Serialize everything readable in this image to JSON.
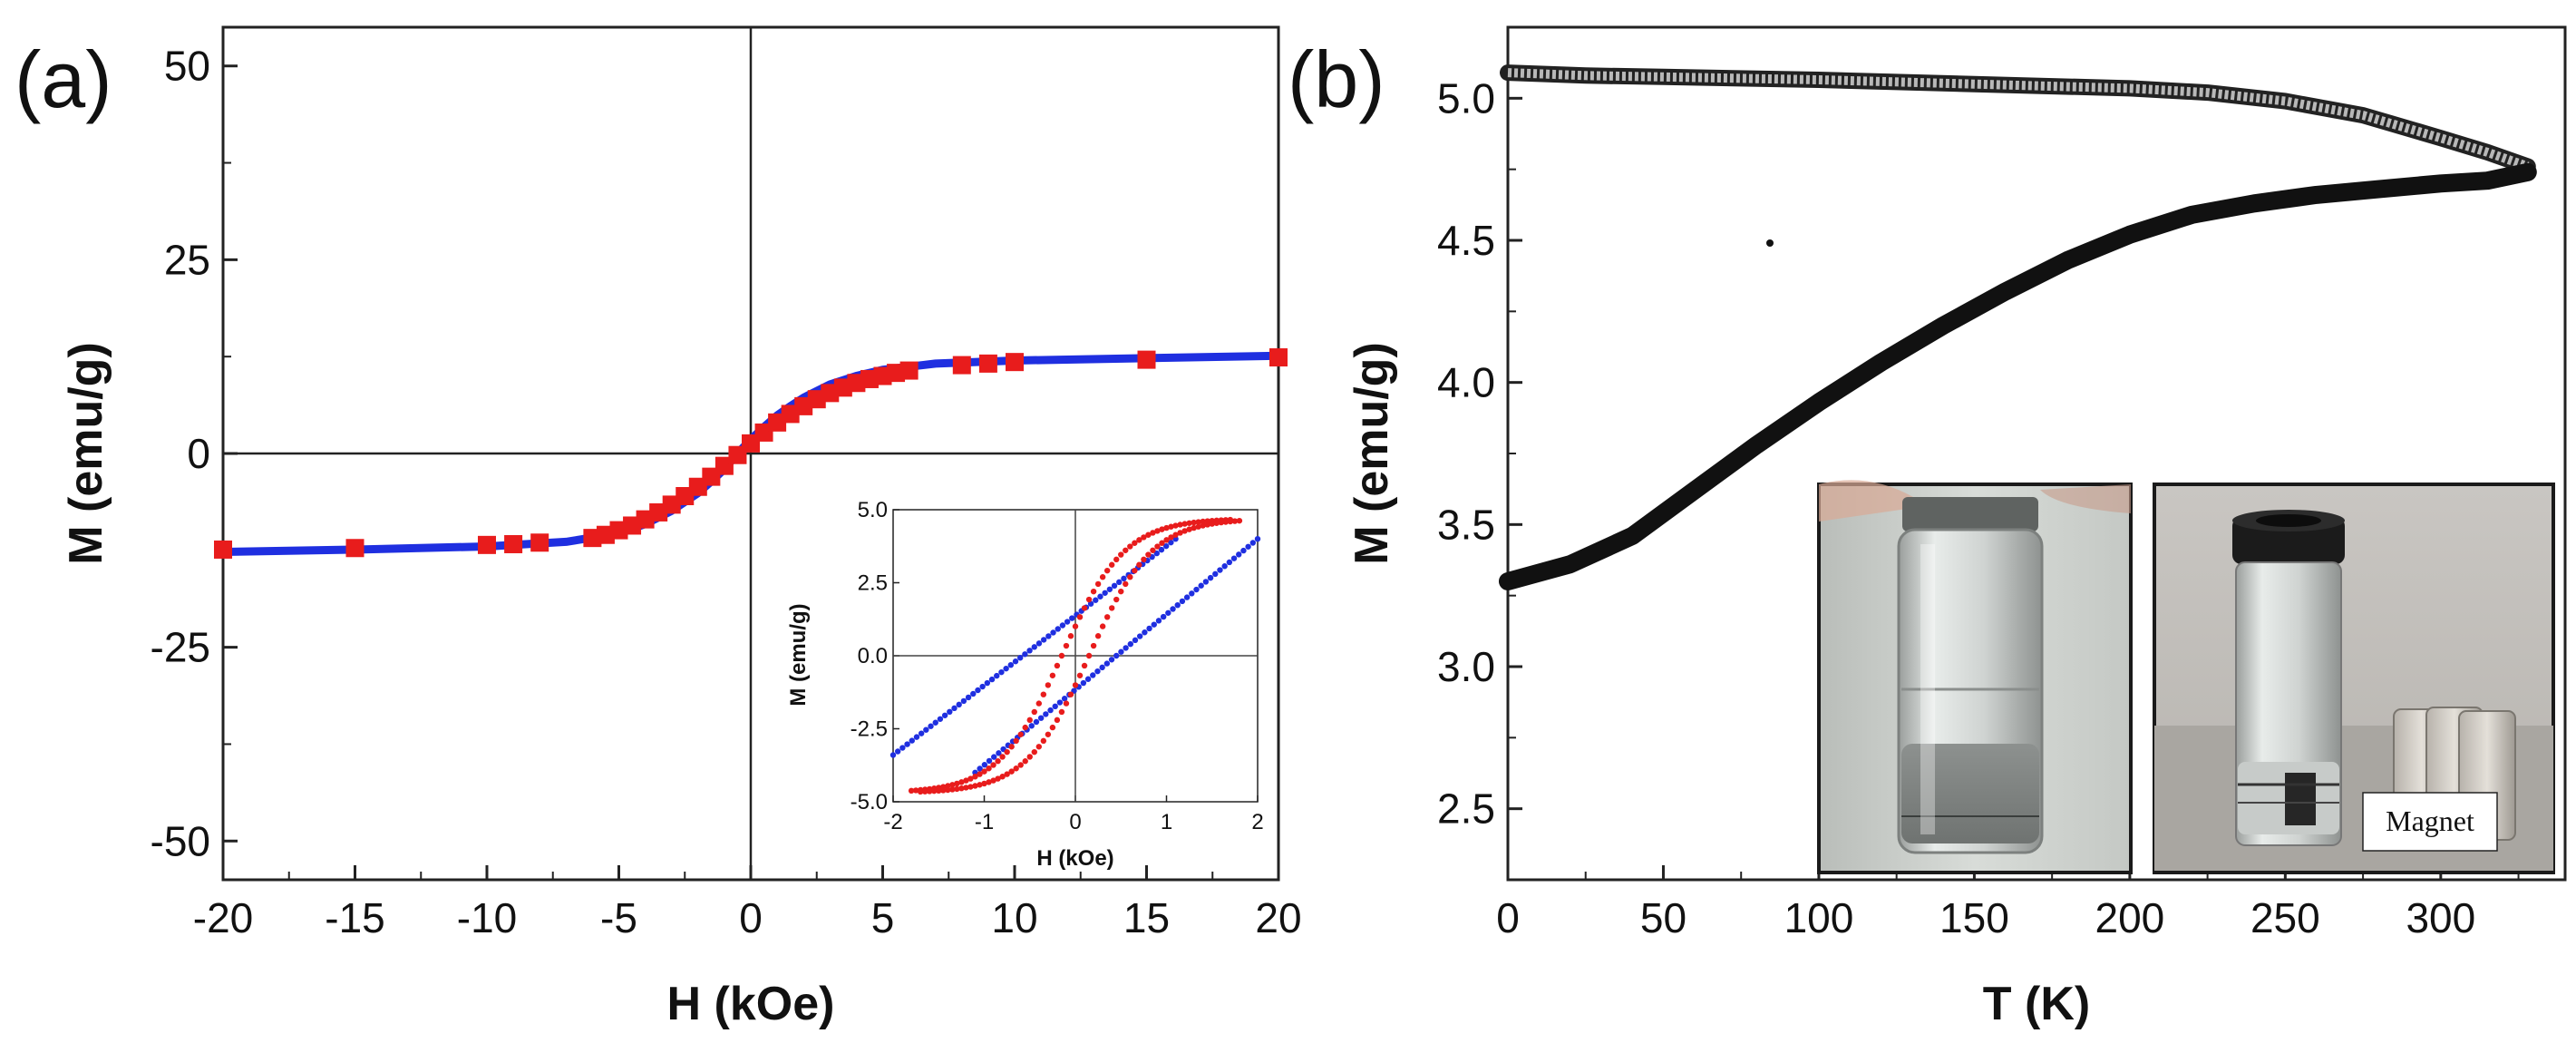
{
  "chart_data": [
    {
      "panel": "(a)",
      "type": "line",
      "xlabel": "H (kOe)",
      "ylabel": "M (emu/g)",
      "xlim": [
        -20,
        20
      ],
      "ylim": [
        -55,
        55
      ],
      "xticks": [
        -20,
        -15,
        -10,
        -5,
        0,
        5,
        10,
        15,
        20
      ],
      "yticks": [
        -50,
        -25,
        0,
        25,
        50
      ],
      "series": [
        {
          "name": "blue curve",
          "color": "#1f2fe0",
          "style": "line",
          "x": [
            -20,
            -15,
            -10,
            -7,
            -5,
            -4,
            -3,
            -2,
            -1.5,
            -1,
            -0.5,
            0,
            0.5,
            1,
            1.5,
            2,
            3,
            4,
            5,
            7,
            10,
            15,
            20
          ],
          "y": [
            -12.7,
            -12.4,
            -12.0,
            -11.4,
            -10.3,
            -9.1,
            -7.4,
            -5.1,
            -3.6,
            -2.0,
            0.0,
            1.8,
            3.4,
            4.9,
            6.1,
            7.2,
            8.9,
            10.0,
            10.8,
            11.6,
            12.0,
            12.3,
            12.6
          ]
        },
        {
          "name": "red squares",
          "color": "#e81c1c",
          "style": "marker",
          "x": [
            -20,
            -15,
            -10,
            -9,
            -8,
            -6,
            -5.5,
            -5,
            -4.5,
            -4,
            -3.5,
            -3,
            -2.5,
            -2,
            -1.5,
            -1,
            -0.5,
            0,
            0.5,
            1,
            1.5,
            2,
            2.5,
            3,
            3.5,
            4,
            4.5,
            5,
            5.5,
            6,
            8,
            9,
            10,
            15,
            20
          ],
          "y": [
            -12.4,
            -12.2,
            -11.8,
            -11.7,
            -11.5,
            -10.9,
            -10.5,
            -9.9,
            -9.3,
            -8.5,
            -7.6,
            -6.6,
            -5.5,
            -4.3,
            -3.0,
            -1.6,
            -0.2,
            1.3,
            2.7,
            4.0,
            5.1,
            6.1,
            7.0,
            7.8,
            8.5,
            9.1,
            9.6,
            10.0,
            10.4,
            10.7,
            11.4,
            11.6,
            11.8,
            12.1,
            12.4
          ]
        }
      ],
      "inset": {
        "xlabel": "H (kOe)",
        "ylabel": "M (emu/g)",
        "xlim": [
          -2,
          2
        ],
        "ylim": [
          -5,
          5
        ],
        "xticks": [
          -2,
          -1,
          0,
          1,
          2
        ],
        "ytick_labels": [
          "5.0",
          "2.5",
          "0.0",
          "-2.5",
          "-5.0"
        ],
        "yticks": [
          5,
          2.5,
          0,
          -2.5,
          -5
        ],
        "series": [
          {
            "name": "blue descending",
            "color": "#1f2fe0",
            "x1": -2,
            "y1": -3.4,
            "x2": 1.1,
            "y2": 4.0
          },
          {
            "name": "blue ascending",
            "color": "#1f2fe0",
            "x1": -1.1,
            "y1": -4.0,
            "x2": 2,
            "y2": 4.0
          },
          {
            "name": "red loop",
            "color": "#e81c1c"
          }
        ]
      }
    },
    {
      "panel": "(b)",
      "type": "line",
      "xlabel": "T (K)",
      "ylabel": "M (emu/g)",
      "xlim": [
        0,
        340
      ],
      "ylim": [
        2.25,
        5.25
      ],
      "xticks": [
        0,
        50,
        100,
        150,
        200,
        250,
        300
      ],
      "yticks": [
        2.5,
        3.0,
        3.5,
        4.0,
        4.5,
        5.0
      ],
      "ytick_labels": [
        "2.5",
        "3.0",
        "3.5",
        "4.0",
        "4.5",
        "5.0"
      ],
      "series": [
        {
          "name": "FC (upper branch)",
          "color": "#777777",
          "x": [
            0,
            25,
            50,
            100,
            150,
            200,
            225,
            250,
            275,
            300,
            315,
            328
          ],
          "y": [
            5.09,
            5.08,
            5.075,
            5.065,
            5.05,
            5.035,
            5.02,
            4.99,
            4.94,
            4.86,
            4.81,
            4.76
          ]
        },
        {
          "name": "ZFC (lower branch)",
          "color": "#111111",
          "x": [
            0,
            20,
            40,
            60,
            80,
            100,
            120,
            140,
            160,
            180,
            200,
            220,
            240,
            260,
            280,
            300,
            315,
            328
          ],
          "y": [
            3.3,
            3.36,
            3.46,
            3.62,
            3.78,
            3.93,
            4.07,
            4.2,
            4.32,
            4.43,
            4.52,
            4.59,
            4.63,
            4.66,
            4.68,
            4.7,
            4.71,
            4.74
          ]
        }
      ],
      "photos": [
        {
          "label": ""
        },
        {
          "label": "Magnet"
        }
      ]
    }
  ]
}
